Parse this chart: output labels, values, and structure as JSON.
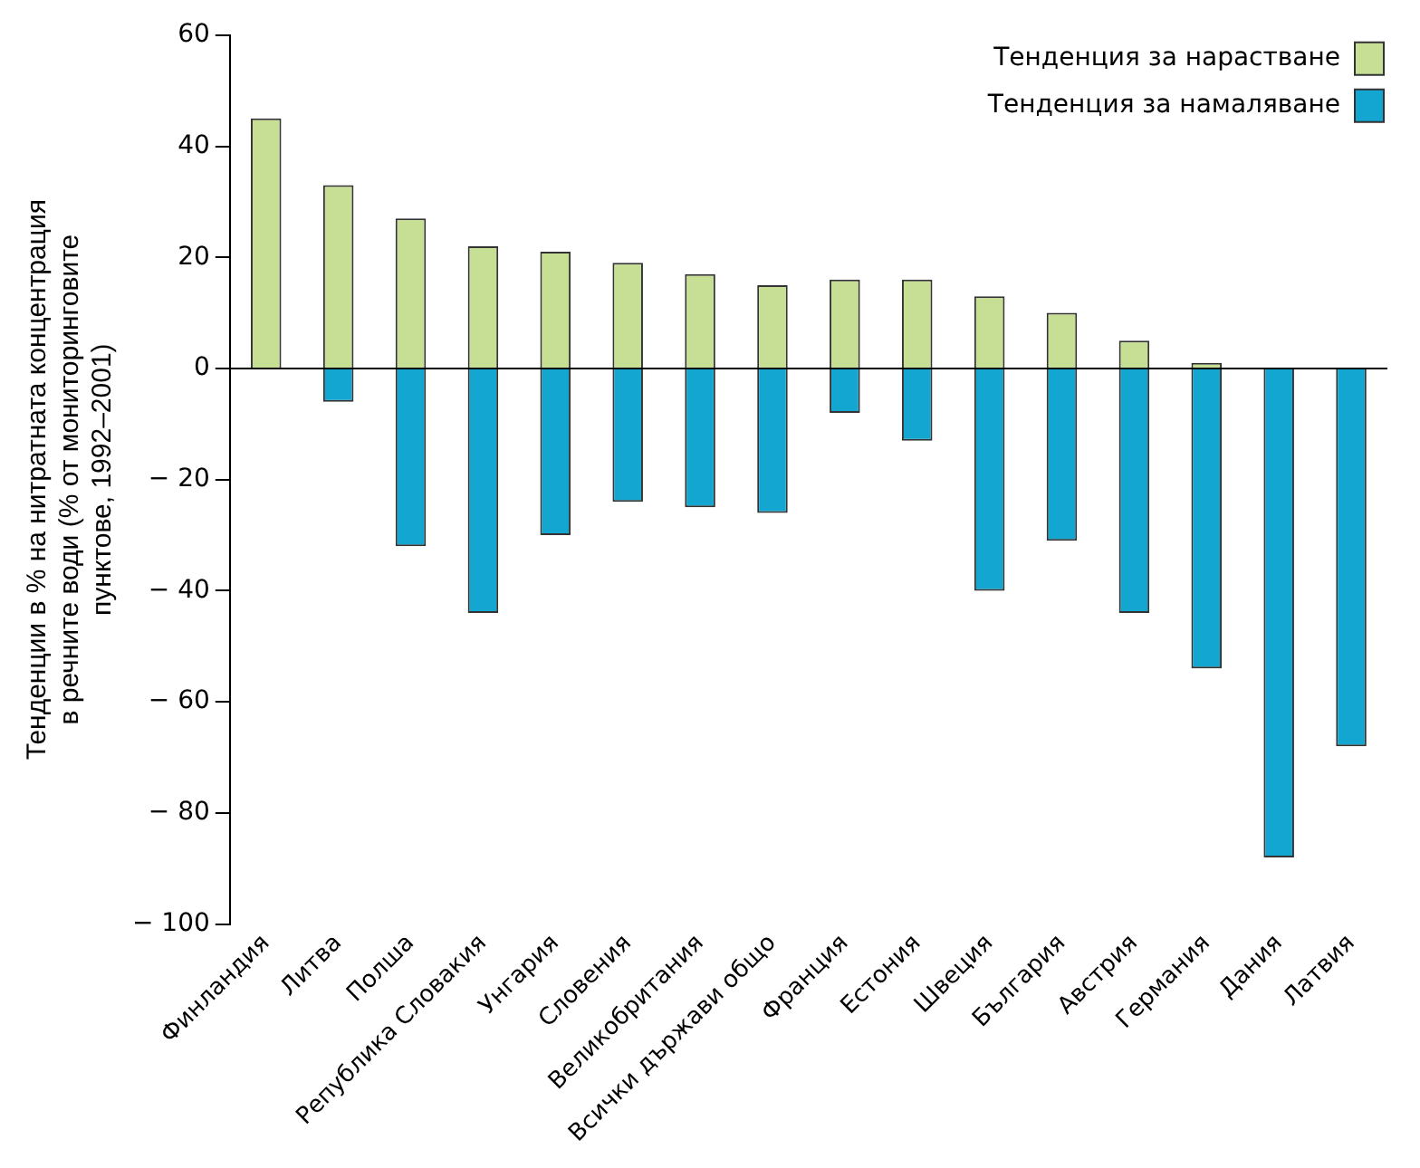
{
  "chart_data": {
    "type": "bar",
    "stacked": true,
    "ylabel": "Тенденции в % на нитратната концентрация\nв речните води (% от мониторинговите\nпунктове, 1992–2001)",
    "categories": [
      "Финландия",
      "Литва",
      "Полша",
      "Република Словакия",
      "Унгария",
      "Словения",
      "Великобритания",
      "Всички държави общо",
      "Франция",
      "Естония",
      "Швеция",
      "България",
      "Австрия",
      "Германия",
      "Дания",
      "Латвия"
    ],
    "series": [
      {
        "name": "Тенденция за нарастване",
        "color": "#c6df94",
        "values": [
          45,
          33,
          27,
          22,
          21,
          19,
          17,
          15,
          16,
          16,
          13,
          10,
          5,
          1,
          null,
          null
        ]
      },
      {
        "name": "Тенденция за намаляване",
        "color": "#12a6d0",
        "values": [
          null,
          -6,
          -32,
          -44,
          -30,
          -24,
          -25,
          -26,
          -8,
          -13,
          -40,
          -31,
          -44,
          -54,
          -88,
          -68
        ]
      }
    ],
    "ylim": [
      -100,
      60
    ],
    "yticks": [
      {
        "value": -100,
        "label": "− 100"
      },
      {
        "value": -80,
        "label": "− 80"
      },
      {
        "value": -60,
        "label": "− 60"
      },
      {
        "value": -40,
        "label": "− 40"
      },
      {
        "value": -20,
        "label": "− 20"
      },
      0,
      20,
      40,
      60
    ],
    "ref_lines": [
      {
        "axis": "y",
        "value": 0,
        "color": "#000000"
      }
    ],
    "grid": false,
    "legend": "top right"
  }
}
